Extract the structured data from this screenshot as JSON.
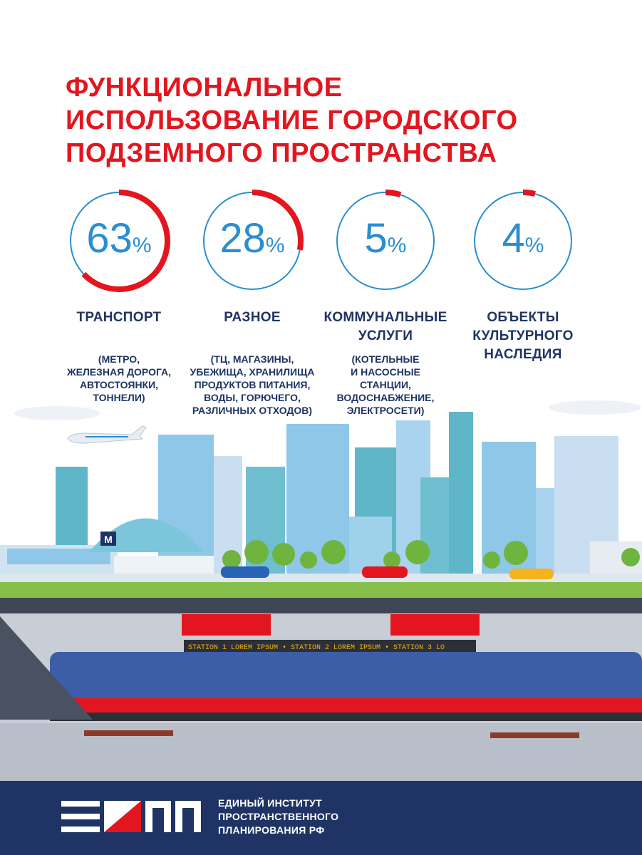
{
  "title": {
    "line1": "ФУНКЦИОНАЛЬНОЕ",
    "line2": "ИСПОЛЬЗОВАНИЕ ГОРОДСКОГО",
    "line3": "ПОДЗЕМНОГО ПРОСТРАНСТВА"
  },
  "colors": {
    "accent": "#e3161f",
    "blue": "#2a8ed0",
    "navy": "#1f3464"
  },
  "stats": [
    {
      "value": "63",
      "unit": "%",
      "fraction": 0.63,
      "label1": "ТРАНСПОРТ",
      "label2": "",
      "label3": "",
      "desc": [
        "(МЕТРО,",
        "ЖЕЛЕЗНАЯ ДОРОГА,",
        "АВТОСТОЯНКИ,",
        "ТОННЕЛИ)"
      ]
    },
    {
      "value": "28",
      "unit": "%",
      "fraction": 0.28,
      "label1": "РАЗНОЕ",
      "label2": "",
      "label3": "",
      "desc": [
        "(ТЦ, МАГАЗИНЫ,",
        "УБЕЖИЩА, ХРАНИЛИЩА",
        "ПРОДУКТОВ ПИТАНИЯ,",
        "ВОДЫ, ГОРЮЧЕГО,",
        "РАЗЛИЧНЫХ ОТХОДОВ)"
      ]
    },
    {
      "value": "5",
      "unit": "%",
      "fraction": 0.05,
      "label1": "КОММУНАЛЬНЫЕ",
      "label2": "УСЛУГИ",
      "label3": "",
      "desc": [
        "(КОТЕЛЬНЫЕ",
        "И НАСОСНЫЕ",
        "СТАНЦИИ,",
        "ВОДОСНАБЖЕНИЕ,",
        "ЭЛЕКТРОСЕТИ)"
      ]
    },
    {
      "value": "4",
      "unit": "%",
      "fraction": 0.04,
      "label1": "ОБЪЕКТЫ",
      "label2": "КУЛЬТУРНОГО",
      "label3": "НАСЛЕДИЯ",
      "desc": []
    }
  ],
  "scene": {
    "metro_sign": "M",
    "ticker": "STATION 1 LOREM IPSUM • STATION 2 LOREM IPSUM • STATION 3 LO"
  },
  "footer": {
    "org_line1": "ЕДИНЫЙ ИНСТИТУТ",
    "org_line2": "ПРОСТРАНСТВЕННОГО",
    "org_line3": "ПЛАНИРОВАНИЯ РФ"
  }
}
